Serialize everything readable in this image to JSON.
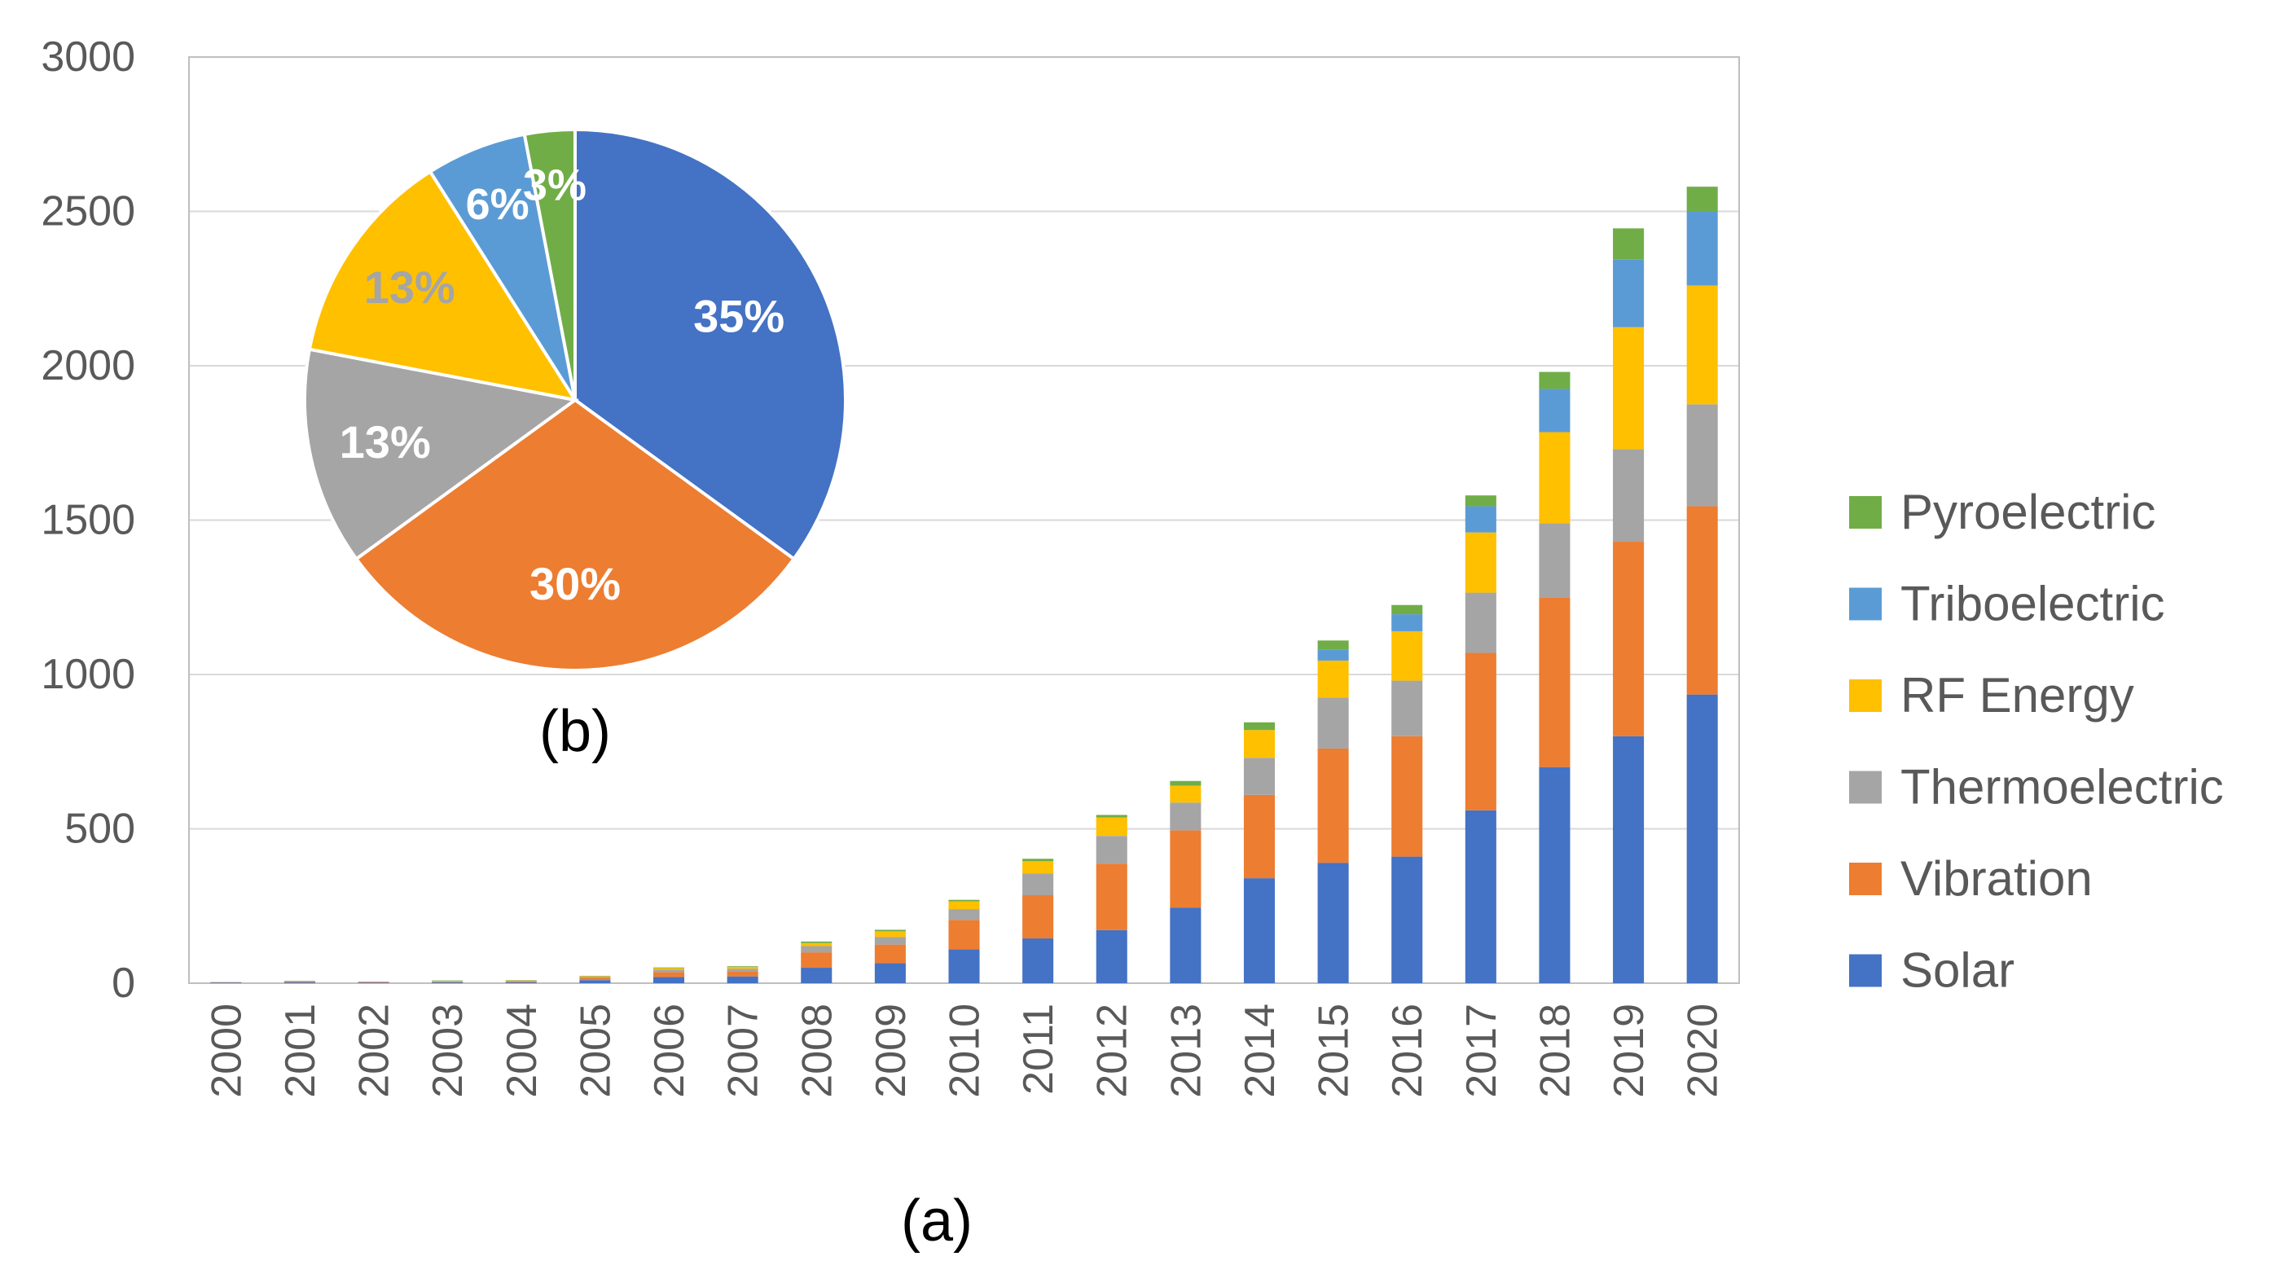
{
  "chart_data": [
    {
      "type": "bar",
      "stacked": true,
      "caption": "(a)",
      "categories": [
        "2000",
        "2001",
        "2002",
        "2003",
        "2004",
        "2005",
        "2006",
        "2007",
        "2008",
        "2009",
        "2010",
        "2011",
        "2012",
        "2013",
        "2014",
        "2015",
        "2016",
        "2017",
        "2018",
        "2019",
        "2020"
      ],
      "ylim": [
        0,
        3000
      ],
      "yticks": [
        0,
        500,
        1000,
        1500,
        2000,
        2500,
        3000
      ],
      "grid": true,
      "legend_position": "right",
      "series": [
        {
          "name": "Solar",
          "color": "#4472C4",
          "values": [
            2,
            3,
            2,
            3,
            3,
            10,
            20,
            22,
            50,
            65,
            110,
            145,
            172,
            245,
            340,
            390,
            410,
            560,
            700,
            800,
            935
          ]
        },
        {
          "name": "Vibration",
          "color": "#ED7D31",
          "values": [
            1,
            3,
            2,
            2,
            3,
            7,
            16,
            17,
            50,
            60,
            95,
            140,
            215,
            250,
            270,
            370,
            390,
            510,
            550,
            630,
            610
          ]
        },
        {
          "name": "Thermoelectric",
          "color": "#A5A5A5",
          "values": [
            1,
            1,
            1,
            2,
            2,
            4,
            8,
            8,
            20,
            25,
            35,
            70,
            90,
            90,
            120,
            165,
            180,
            195,
            240,
            300,
            330
          ]
        },
        {
          "name": "RF Energy",
          "color": "#FFC000",
          "values": [
            0,
            0,
            0,
            1,
            1,
            2,
            5,
            6,
            10,
            18,
            25,
            40,
            60,
            55,
            90,
            120,
            160,
            195,
            295,
            395,
            385
          ]
        },
        {
          "name": "Triboelectric",
          "color": "#5B9BD5",
          "values": [
            0,
            0,
            0,
            0,
            0,
            0,
            0,
            0,
            0,
            0,
            0,
            0,
            0,
            0,
            0,
            35,
            55,
            85,
            140,
            220,
            240
          ]
        },
        {
          "name": "Pyroelectric",
          "color": "#70AD47",
          "values": [
            0,
            1,
            0,
            1,
            1,
            1,
            2,
            2,
            5,
            5,
            5,
            8,
            8,
            15,
            25,
            30,
            30,
            35,
            55,
            100,
            80
          ]
        }
      ]
    },
    {
      "type": "pie",
      "caption": "(b)",
      "slices": [
        {
          "name": "Solar",
          "value": 35,
          "label": "35%",
          "color": "#4472C4",
          "label_color": "#ffffff"
        },
        {
          "name": "Vibration",
          "value": 30,
          "label": "30%",
          "color": "#ED7D31",
          "label_color": "#ffffff"
        },
        {
          "name": "Thermoelectric",
          "value": 13,
          "label": "13%",
          "color": "#A5A5A5",
          "label_color": "#ffffff"
        },
        {
          "name": "RF Energy",
          "value": 13,
          "label": "13%",
          "color": "#FFC000",
          "label_color": "#A5A5A5"
        },
        {
          "name": "Triboelectric",
          "value": 6,
          "label": "6%",
          "color": "#5B9BD5",
          "label_color": "#ffffff"
        },
        {
          "name": "Pyroelectric",
          "value": 3,
          "label": "3%",
          "color": "#70AD47",
          "label_color": "#ffffff"
        }
      ]
    }
  ]
}
